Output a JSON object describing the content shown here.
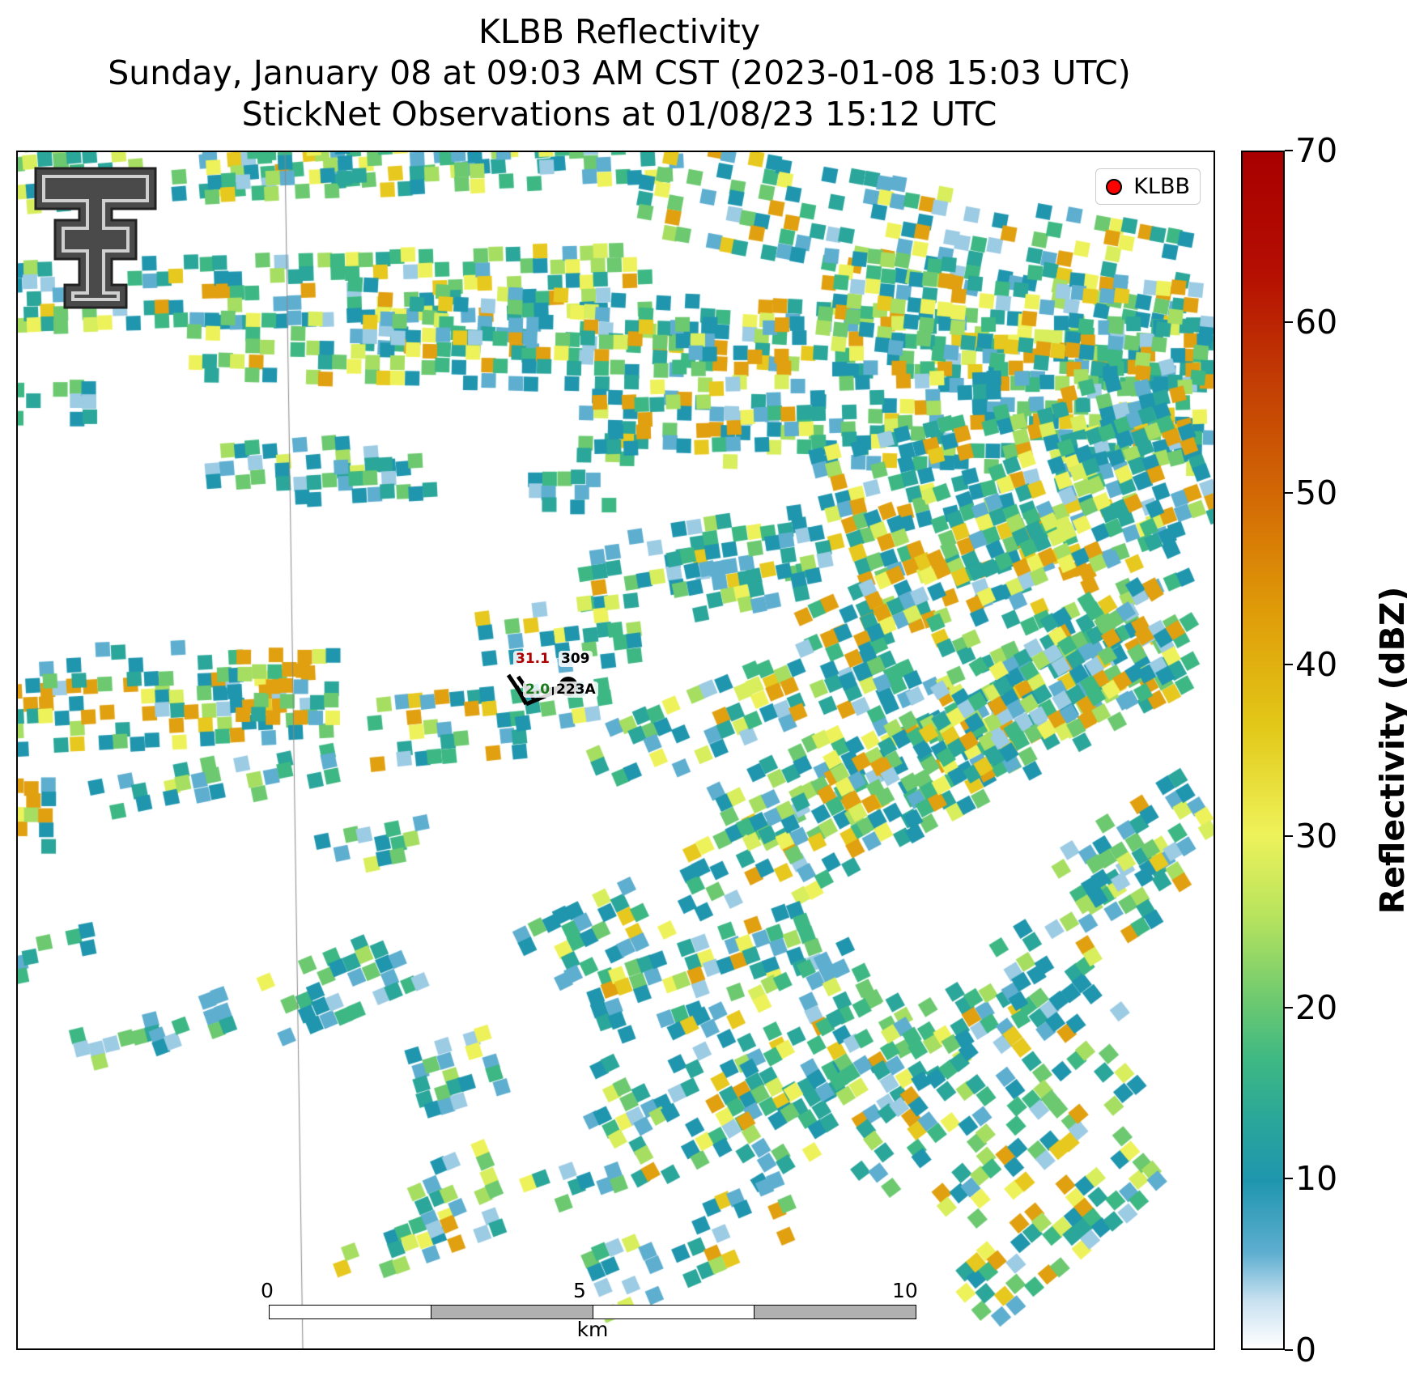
{
  "title_lines": [
    "KLBB Reflectivity",
    "Sunday, January 08 at 09:03 AM CST (2023-01-08 15:03 UTC)",
    "StickNet Observations at 01/08/23 15:12 UTC"
  ],
  "legend": {
    "label": "KLBB",
    "marker_color": "#ff0000"
  },
  "station": {
    "temperature": "31.1",
    "pressure": "309",
    "dewpoint": "2.0",
    "station_id": "223A"
  },
  "scalebar": {
    "ticks": [
      "0",
      "5",
      "10"
    ],
    "unit": "km"
  },
  "colorbar": {
    "label": "Reflectivity (dBZ)",
    "min": 0,
    "max": 70,
    "tick_labels": [
      "0",
      "10",
      "20",
      "30",
      "40",
      "50",
      "60",
      "70"
    ],
    "ticks": [
      0,
      10,
      20,
      30,
      40,
      50,
      60,
      70
    ],
    "colors": [
      "#ffffff",
      "#c8e1f0",
      "#1f96ae",
      "#3db884",
      "#eef25a",
      "#e2c818",
      "#d36a05",
      "#a80000"
    ]
  },
  "logo": {
    "name": "texas-tech-double-t"
  }
}
